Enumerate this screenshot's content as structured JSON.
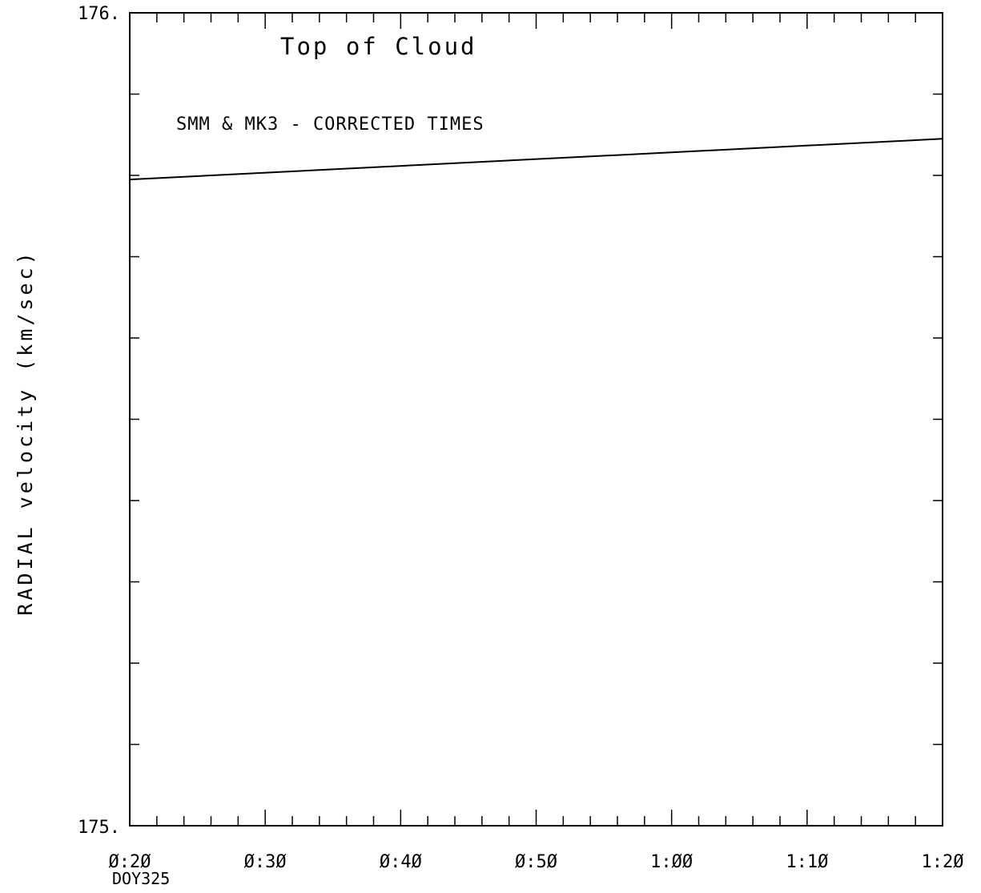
{
  "chart_data": {
    "type": "line",
    "title": "Top of Cloud",
    "subtitle": "SMM & MK3 - CORRECTED TIMES",
    "ylabel": "RADIAL velocity (km/sec)",
    "xlabel": "",
    "x_origin_label": "DOY325",
    "ylim": [
      175,
      176
    ],
    "y_ticks": [
      "175.",
      "176."
    ],
    "xlim": [
      "0:20",
      "1:20"
    ],
    "x_ticks": [
      "Ø:2Ø",
      "Ø:3Ø",
      "Ø:4Ø",
      "Ø:5Ø",
      "1:ØØ",
      "1:1Ø",
      "1:2Ø"
    ],
    "grid": false,
    "series": [
      {
        "x": [
          "0:20",
          "1:20"
        ],
        "values": [
          175.795,
          175.845
        ]
      }
    ]
  }
}
